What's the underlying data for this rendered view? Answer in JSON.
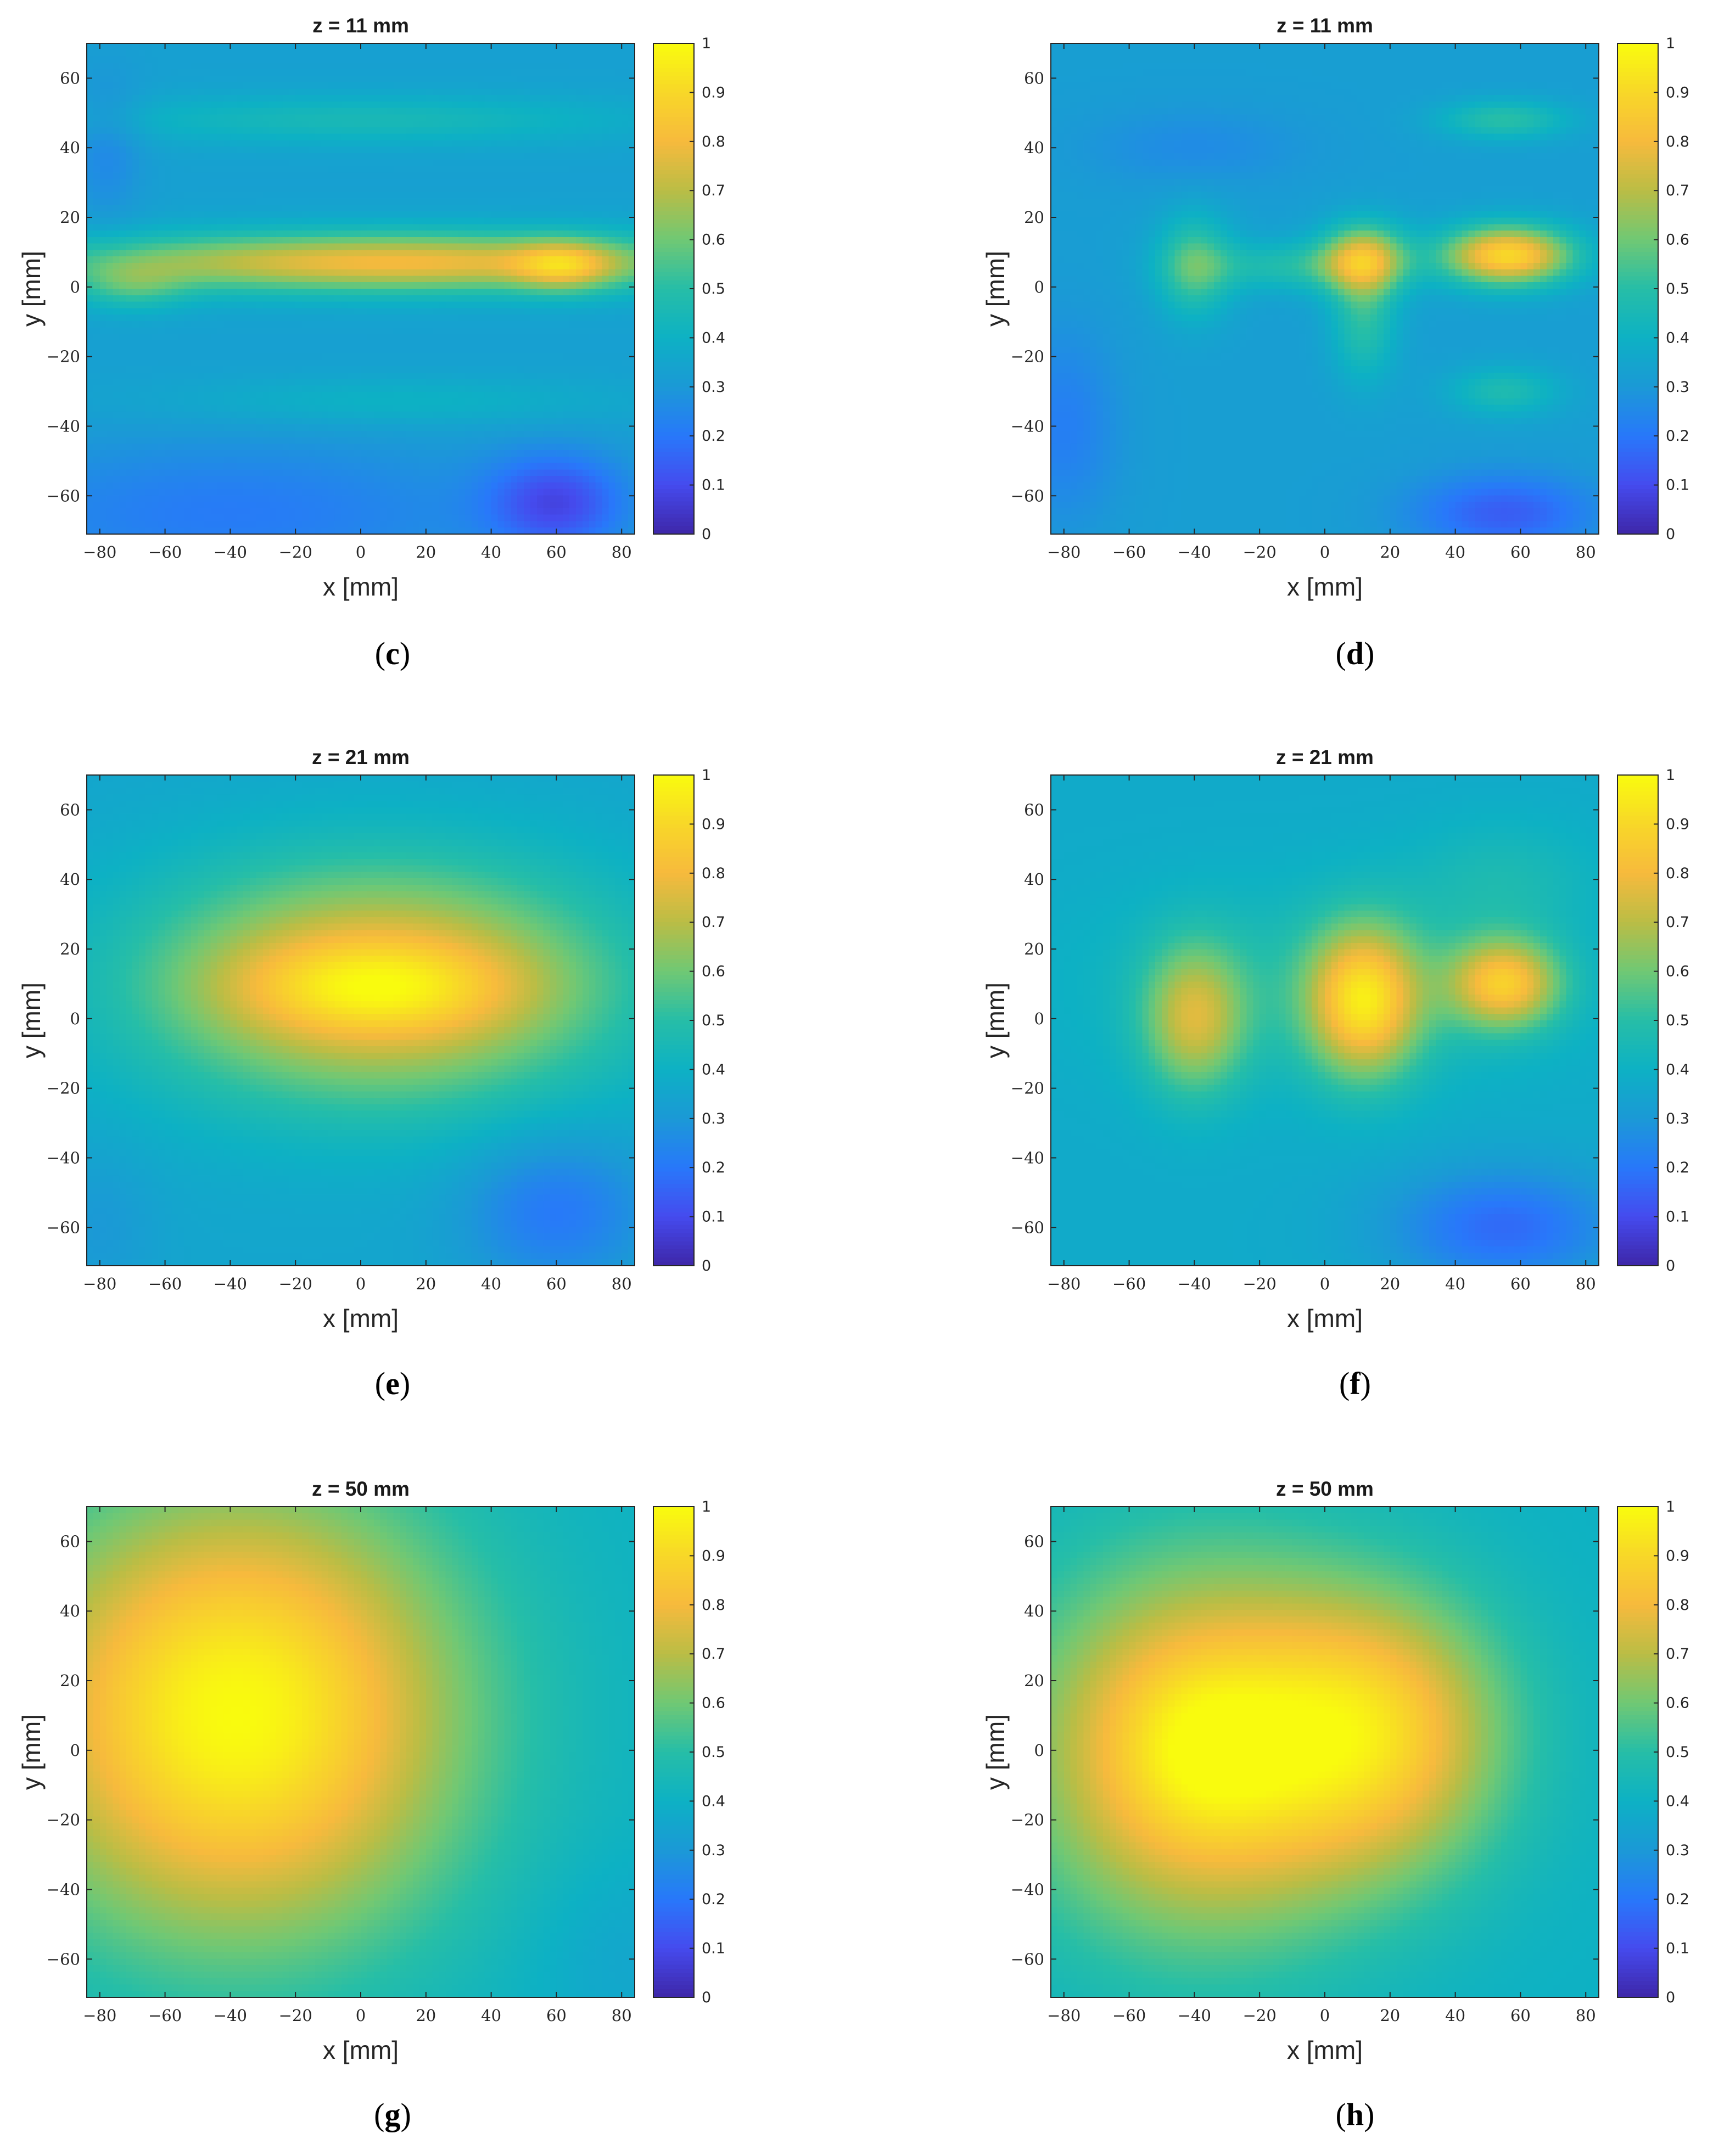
{
  "chart_data": [
    {
      "type": "heatmap",
      "panel": "c",
      "title": "z = 11 mm",
      "xlabel": "x [mm]",
      "ylabel": "y [mm]",
      "xlim": [
        -84,
        84
      ],
      "ylim": [
        -71,
        70
      ],
      "xticks": [
        "−80",
        "−60",
        "−40",
        "−20",
        "0",
        "20",
        "40",
        "60",
        "80"
      ],
      "yticks": [
        "60",
        "40",
        "20",
        "0",
        "−20",
        "−40",
        "−60"
      ],
      "colorbar": {
        "ticks": [
          "0",
          "0.1",
          "0.2",
          "0.3",
          "0.4",
          "0.5",
          "0.6",
          "0.7",
          "0.8",
          "0.9",
          "1"
        ],
        "range": [
          0,
          1
        ],
        "colormap": "parula"
      },
      "base": 0.33,
      "blobs": [
        {
          "x": 10,
          "y": 7,
          "sx": 70,
          "sy": 6,
          "a": 0.47
        },
        {
          "x": 62,
          "y": 6,
          "sx": 10,
          "sy": 5,
          "a": 0.25
        },
        {
          "x": -70,
          "y": 0,
          "sx": 12,
          "sy": 5,
          "a": 0.15
        },
        {
          "x": 0,
          "y": 48,
          "sx": 60,
          "sy": 5,
          "a": 0.12
        },
        {
          "x": 10,
          "y": -33,
          "sx": 50,
          "sy": 5,
          "a": 0.08
        },
        {
          "x": 60,
          "y": -62,
          "sx": 15,
          "sy": 10,
          "a": -0.22
        },
        {
          "x": -40,
          "y": -65,
          "sx": 60,
          "sy": 15,
          "a": -0.12
        },
        {
          "x": -78,
          "y": 40,
          "sx": 8,
          "sy": 15,
          "a": -0.08
        }
      ]
    },
    {
      "type": "heatmap",
      "panel": "d",
      "title": "z = 11 mm",
      "xlabel": "x [mm]",
      "ylabel": "y [mm]",
      "xlim": [
        -84,
        84
      ],
      "ylim": [
        -71,
        70
      ],
      "xticks": [
        "−80",
        "−60",
        "−40",
        "−20",
        "0",
        "20",
        "40",
        "60",
        "80"
      ],
      "yticks": [
        "60",
        "40",
        "20",
        "0",
        "−20",
        "−40",
        "−60"
      ],
      "colorbar": {
        "ticks": [
          "0",
          "0.1",
          "0.2",
          "0.3",
          "0.4",
          "0.5",
          "0.6",
          "0.7",
          "0.8",
          "0.9",
          "1"
        ],
        "range": [
          0,
          1
        ],
        "colormap": "parula"
      },
      "base": 0.32,
      "blobs": [
        {
          "x": 56,
          "y": 9,
          "sx": 14,
          "sy": 6,
          "a": 0.58
        },
        {
          "x": 12,
          "y": 8,
          "sx": 9,
          "sy": 7,
          "a": 0.42
        },
        {
          "x": 12,
          "y": -10,
          "sx": 7,
          "sy": 12,
          "a": 0.18
        },
        {
          "x": -40,
          "y": 6,
          "sx": 8,
          "sy": 10,
          "a": 0.24
        },
        {
          "x": -10,
          "y": 6,
          "sx": 20,
          "sy": 5,
          "a": 0.16
        },
        {
          "x": 55,
          "y": 48,
          "sx": 14,
          "sy": 4,
          "a": 0.18
        },
        {
          "x": 55,
          "y": -30,
          "sx": 12,
          "sy": 5,
          "a": 0.15
        },
        {
          "x": -80,
          "y": -40,
          "sx": 12,
          "sy": 20,
          "a": -0.1
        },
        {
          "x": 55,
          "y": -65,
          "sx": 20,
          "sy": 8,
          "a": -0.18
        },
        {
          "x": -40,
          "y": 40,
          "sx": 25,
          "sy": 8,
          "a": -0.06
        }
      ]
    },
    {
      "type": "heatmap",
      "panel": "e",
      "title": "z = 21 mm",
      "xlabel": "x [mm]",
      "ylabel": "y [mm]",
      "xlim": [
        -84,
        84
      ],
      "ylim": [
        -71,
        70
      ],
      "xticks": [
        "−80",
        "−60",
        "−40",
        "−20",
        "0",
        "20",
        "40",
        "60",
        "80"
      ],
      "yticks": [
        "60",
        "40",
        "20",
        "0",
        "−20",
        "−40",
        "−60"
      ],
      "colorbar": {
        "ticks": [
          "0",
          "0.1",
          "0.2",
          "0.3",
          "0.4",
          "0.5",
          "0.6",
          "0.7",
          "0.8",
          "0.9",
          "1"
        ],
        "range": [
          0,
          1
        ],
        "colormap": "parula"
      },
      "base": 0.35,
      "blobs": [
        {
          "x": 5,
          "y": 10,
          "sx": 50,
          "sy": 24,
          "a": 0.48
        },
        {
          "x": 5,
          "y": 9,
          "sx": 30,
          "sy": 9,
          "a": 0.18
        },
        {
          "x": 60,
          "y": -55,
          "sx": 20,
          "sy": 15,
          "a": -0.15
        },
        {
          "x": -80,
          "y": -60,
          "sx": 12,
          "sy": 15,
          "a": -0.05
        }
      ]
    },
    {
      "type": "heatmap",
      "panel": "f",
      "title": "z = 21 mm",
      "xlabel": "x [mm]",
      "ylabel": "y [mm]",
      "xlim": [
        -84,
        84
      ],
      "ylim": [
        -71,
        70
      ],
      "xticks": [
        "−80",
        "−60",
        "−40",
        "−20",
        "0",
        "20",
        "40",
        "60",
        "80"
      ],
      "yticks": [
        "60",
        "40",
        "20",
        "0",
        "−20",
        "−40",
        "−60"
      ],
      "colorbar": {
        "ticks": [
          "0",
          "0.1",
          "0.2",
          "0.3",
          "0.4",
          "0.5",
          "0.6",
          "0.7",
          "0.8",
          "0.9",
          "1"
        ],
        "range": [
          0,
          1
        ],
        "colormap": "parula"
      },
      "base": 0.37,
      "blobs": [
        {
          "x": 12,
          "y": 5,
          "sx": 12,
          "sy": 15,
          "a": 0.5
        },
        {
          "x": 55,
          "y": 10,
          "sx": 12,
          "sy": 9,
          "a": 0.45
        },
        {
          "x": -40,
          "y": 0,
          "sx": 11,
          "sy": 15,
          "a": 0.33
        },
        {
          "x": 0,
          "y": 10,
          "sx": 50,
          "sy": 20,
          "a": 0.1
        },
        {
          "x": 55,
          "y": -60,
          "sx": 25,
          "sy": 12,
          "a": -0.2
        },
        {
          "x": 55,
          "y": 40,
          "sx": 20,
          "sy": 12,
          "a": 0.08
        }
      ]
    },
    {
      "type": "heatmap",
      "panel": "g",
      "title": "z = 50 mm",
      "xlabel": "x [mm]",
      "ylabel": "y [mm]",
      "xlim": [
        -84,
        84
      ],
      "ylim": [
        -71,
        70
      ],
      "xticks": [
        "−80",
        "−60",
        "−40",
        "−20",
        "0",
        "20",
        "40",
        "60",
        "80"
      ],
      "yticks": [
        "60",
        "40",
        "20",
        "0",
        "−20",
        "−40",
        "−60"
      ],
      "colorbar": {
        "ticks": [
          "0",
          "0.1",
          "0.2",
          "0.3",
          "0.4",
          "0.5",
          "0.6",
          "0.7",
          "0.8",
          "0.9",
          "1"
        ],
        "range": [
          0,
          1
        ],
        "colormap": "parula"
      },
      "base": 0.4,
      "blobs": [
        {
          "x": -38,
          "y": 10,
          "sx": 48,
          "sy": 45,
          "a": 0.6
        },
        {
          "x": 80,
          "y": -60,
          "sx": 20,
          "sy": 20,
          "a": -0.05
        }
      ]
    },
    {
      "type": "heatmap",
      "panel": "h",
      "title": "z = 50 mm",
      "xlabel": "x [mm]",
      "ylabel": "y [mm]",
      "xlim": [
        -84,
        84
      ],
      "ylim": [
        -71,
        70
      ],
      "xticks": [
        "−80",
        "−60",
        "−40",
        "−20",
        "0",
        "20",
        "40",
        "60",
        "80"
      ],
      "yticks": [
        "60",
        "40",
        "20",
        "0",
        "−20",
        "−40",
        "−60"
      ],
      "colorbar": {
        "ticks": [
          "0",
          "0.1",
          "0.2",
          "0.3",
          "0.4",
          "0.5",
          "0.6",
          "0.7",
          "0.8",
          "0.9",
          "1"
        ],
        "range": [
          0,
          1
        ],
        "colormap": "parula"
      },
      "base": 0.4,
      "blobs": [
        {
          "x": -38,
          "y": 0,
          "sx": 38,
          "sy": 38,
          "a": 0.5
        },
        {
          "x": 18,
          "y": 5,
          "sx": 28,
          "sy": 28,
          "a": 0.38
        },
        {
          "x": -38,
          "y": 0,
          "sx": 18,
          "sy": 18,
          "a": 0.1
        }
      ]
    }
  ],
  "captions": [
    {
      "pre": "(",
      "letter": "c",
      "post": ")"
    },
    {
      "pre": "(",
      "letter": "d",
      "post": ")"
    },
    {
      "pre": "(",
      "letter": "e",
      "post": ")"
    },
    {
      "pre": "(",
      "letter": "f",
      "post": ")"
    },
    {
      "pre": "(",
      "letter": "g",
      "post": ")"
    },
    {
      "pre": "(",
      "letter": "h",
      "post": ")"
    }
  ]
}
